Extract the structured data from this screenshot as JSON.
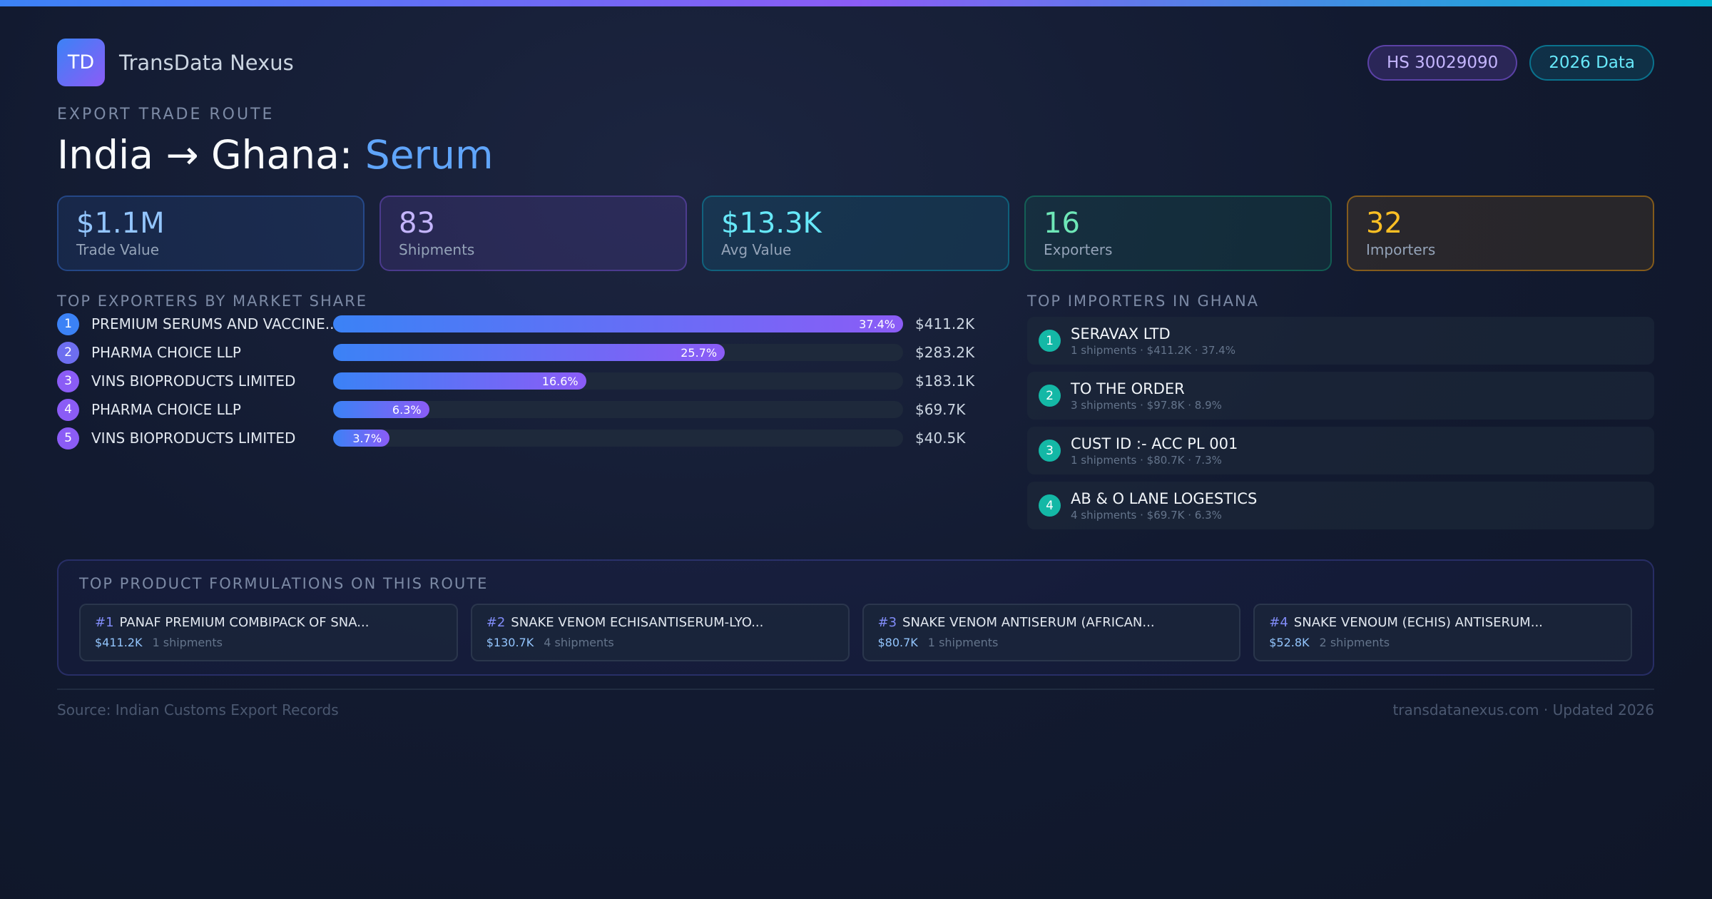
{
  "header": {
    "logo": "TD",
    "brand": "TransData Nexus",
    "pills": [
      "HS 30029090",
      "2026 Data"
    ]
  },
  "eyebrow": "EXPORT TRADE ROUTE",
  "title": {
    "prefix": "India → Ghana:",
    "highlight": "Serum"
  },
  "stats": [
    {
      "value": "$1.1M",
      "label": "Trade Value"
    },
    {
      "value": "83",
      "label": "Shipments"
    },
    {
      "value": "$13.3K",
      "label": "Avg Value"
    },
    {
      "value": "16",
      "label": "Exporters"
    },
    {
      "value": "32",
      "label": "Importers"
    }
  ],
  "exporters": {
    "title": "TOP EXPORTERS BY MARKET SHARE",
    "rows": [
      {
        "rank": 1,
        "name": "PREMIUM SERUMS AND VACCINE...",
        "share": 37.4,
        "share_label": "37.4%",
        "value": "$411.2K"
      },
      {
        "rank": 2,
        "name": "PHARMA CHOICE LLP",
        "share": 25.7,
        "share_label": "25.7%",
        "value": "$283.2K"
      },
      {
        "rank": 3,
        "name": "VINS BIOPRODUCTS LIMITED",
        "share": 16.6,
        "share_label": "16.6%",
        "value": "$183.1K"
      },
      {
        "rank": 4,
        "name": "PHARMA CHOICE LLP",
        "share": 6.3,
        "share_label": "6.3%",
        "value": "$69.7K"
      },
      {
        "rank": 5,
        "name": "VINS BIOPRODUCTS LIMITED",
        "share": 3.7,
        "share_label": "3.7%",
        "value": "$40.5K"
      }
    ]
  },
  "importers": {
    "title": "TOP IMPORTERS IN GHANA",
    "rows": [
      {
        "rank": 1,
        "name": "SERAVAX LTD",
        "sub": "1 shipments · $411.2K · 37.4%"
      },
      {
        "rank": 2,
        "name": "TO THE ORDER",
        "sub": "3 shipments · $97.8K · 8.9%"
      },
      {
        "rank": 3,
        "name": "CUST ID :- ACC PL 001",
        "sub": "1 shipments · $80.7K · 7.3%"
      },
      {
        "rank": 4,
        "name": "AB & O LANE LOGESTICS",
        "sub": "4 shipments · $69.7K · 6.3%"
      }
    ]
  },
  "formulations": {
    "title": "TOP PRODUCT FORMULATIONS ON THIS ROUTE",
    "items": [
      {
        "rank": "#1",
        "name": "PANAF PREMIUM COMBIPACK OF SNA...",
        "value": "$411.2K",
        "shipments": "1 shipments"
      },
      {
        "rank": "#2",
        "name": "SNAKE VENOM ECHISANTISERUM-LYO...",
        "value": "$130.7K",
        "shipments": "4 shipments"
      },
      {
        "rank": "#3",
        "name": "SNAKE VENOM ANTISERUM (AFRICAN...",
        "value": "$80.7K",
        "shipments": "1 shipments"
      },
      {
        "rank": "#4",
        "name": "SNAKE VENOUM (ECHIS) ANTISERUM...",
        "value": "$52.8K",
        "shipments": "2 shipments"
      }
    ]
  },
  "footer": {
    "source": "Source: Indian Customs Export Records",
    "site": "transdatanexus.com · Updated 2026"
  }
}
